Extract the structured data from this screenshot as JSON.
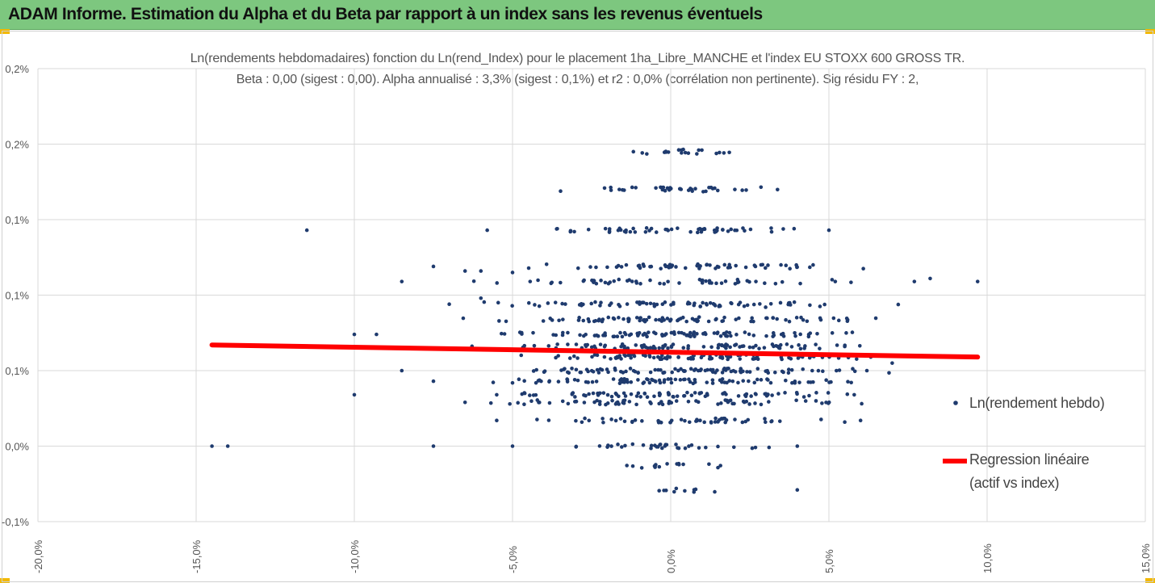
{
  "banner": {
    "title": "ADAM Informe. Estimation du Alpha et du Beta par rapport à un index sans les revenus éventuels"
  },
  "chart_data": {
    "type": "scatter",
    "title": "Ln(rendements hebdomadaires) fonction du Ln(rend_Index) pour le placement 1ha_Libre_MANCHE et l'index EU STOXX 600 GROSS TR.",
    "subtitle": "Beta : 0,00 (sigest : 0,00). Alpha annualisé : 3,3% (sigest : 0,1%) et r2 : 0,0% (corrélation non pertinente). Sig résidu FY : 2,",
    "xlabel": "",
    "ylabel": "",
    "xlim": [
      -0.2,
      0.15
    ],
    "ylim": [
      -0.0005,
      0.0025
    ],
    "x_ticks": [
      -0.2,
      -0.15,
      -0.1,
      -0.05,
      0.0,
      0.05,
      0.1,
      0.15
    ],
    "x_tick_labels": [
      "-20,0%",
      "-15,0%",
      "-10,0%",
      "-5,0%",
      "0,0%",
      "5,0%",
      "10,0%",
      "15,0%"
    ],
    "y_ticks": [
      -0.0005,
      0.0,
      0.0005,
      0.001,
      0.0015,
      0.002,
      0.0025
    ],
    "y_tick_labels": [
      "-0,1%",
      "0,0%",
      "0,1%",
      "0,1%",
      "0,1%",
      "0,2%",
      "0,2%"
    ],
    "grid": "vertical",
    "legend_position": "right",
    "series": [
      {
        "name": "Ln(rendement hebdo)",
        "color": "#1f3b6e",
        "marker": "dot",
        "points": [
          [
            -0.145,
            0.0
          ],
          [
            -0.14,
            0.0
          ],
          [
            -0.115,
            0.00143
          ],
          [
            -0.1,
            0.00074
          ],
          [
            -0.1,
            0.00034
          ],
          [
            -0.093,
            0.00074
          ],
          [
            -0.085,
            0.00109
          ],
          [
            -0.085,
            0.0005
          ],
          [
            -0.075,
            0.00119
          ],
          [
            -0.075,
            0.00043
          ],
          [
            -0.075,
            0.0
          ],
          [
            -0.07,
            0.00094
          ],
          [
            -0.065,
            0.00116
          ],
          [
            -0.065,
            0.00029
          ],
          [
            -0.06,
            0.00098
          ],
          [
            -0.06,
            0.00116
          ],
          [
            -0.058,
            0.00143
          ],
          [
            -0.055,
            0.00034
          ],
          [
            -0.055,
            0.00017
          ],
          [
            -0.05,
            0.0
          ],
          [
            -0.05,
            0.00115
          ]
        ]
      },
      {
        "name": "Regression linéaire",
        "legend_label_lines": [
          "Regression linéaire",
          "(actif vs index)"
        ],
        "color": "#ff0000",
        "type": "line",
        "x": [
          -0.145,
          0.097
        ],
        "y": [
          0.00067,
          0.00059
        ],
        "beta": 0.0,
        "alpha_annualized": "3,3%"
      }
    ],
    "point_cloud_note": "Dense cluster centered at x≈0 (range ≈ -5% to +10%), y between -0,03% and 0,21%"
  },
  "legend": {
    "series1_label": "Ln(rendement hebdo)",
    "series2_label_line1": "Regression linéaire",
    "series2_label_line2": "(actif vs index)"
  }
}
